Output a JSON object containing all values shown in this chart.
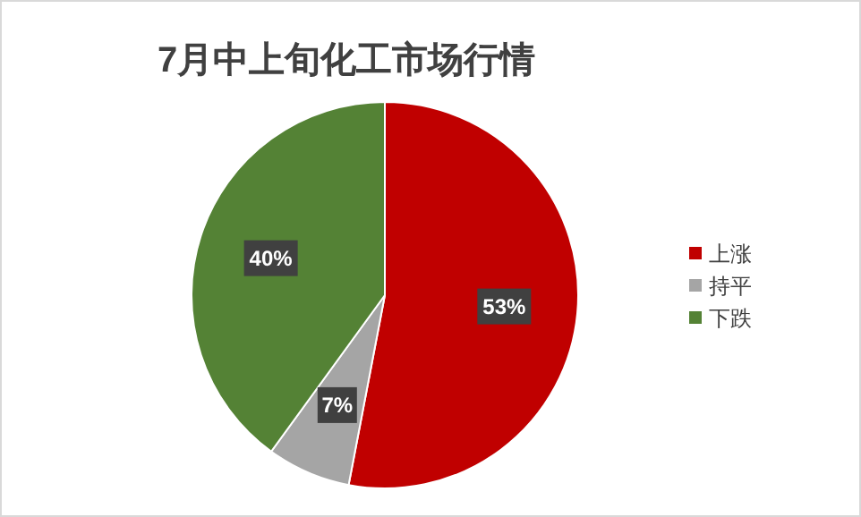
{
  "chart_data": {
    "type": "pie",
    "title": "7月中上旬化工市场行情",
    "categories": [
      "上涨",
      "持平",
      "下跌"
    ],
    "values": [
      53,
      7,
      40
    ],
    "colors": [
      "#c00000",
      "#a5a5a5",
      "#548235"
    ],
    "value_labels": [
      "53%",
      "7%",
      "40%"
    ],
    "legend": "right"
  }
}
